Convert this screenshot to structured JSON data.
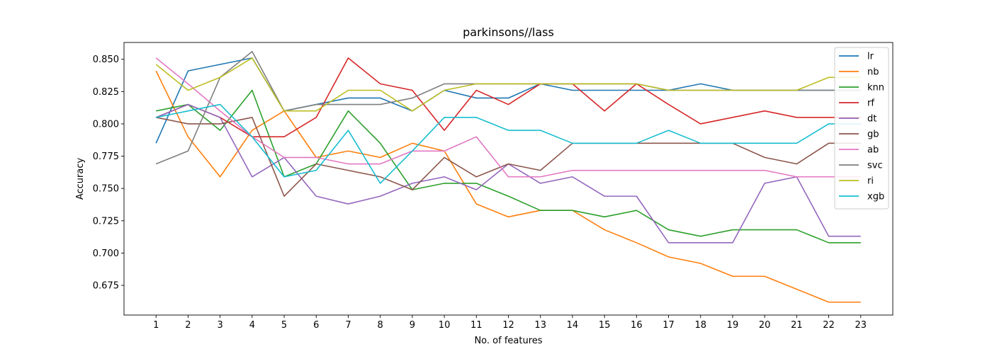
{
  "chart_data": {
    "type": "line",
    "title": "parkinsons//lass",
    "xlabel": "No. of features",
    "ylabel": "Accuracy",
    "x": [
      1,
      2,
      3,
      4,
      5,
      6,
      7,
      8,
      9,
      10,
      11,
      12,
      13,
      14,
      15,
      16,
      17,
      18,
      19,
      20,
      21,
      22,
      23
    ],
    "xticks": [
      "1",
      "2",
      "3",
      "4",
      "5",
      "6",
      "7",
      "8",
      "9",
      "10",
      "11",
      "12",
      "13",
      "14",
      "15",
      "16",
      "17",
      "18",
      "19",
      "20",
      "21",
      "22",
      "23"
    ],
    "yticks": [
      "0.675",
      "0.700",
      "0.725",
      "0.750",
      "0.775",
      "0.800",
      "0.825",
      "0.850"
    ],
    "ytick_values": [
      0.675,
      0.7,
      0.725,
      0.75,
      0.775,
      0.8,
      0.825,
      0.85
    ],
    "xlim": [
      0.0,
      24.0
    ],
    "ylim": [
      0.652,
      0.863
    ],
    "grid": false,
    "legend_position": "top-right",
    "series": [
      {
        "name": "lr",
        "color": "#1f77b4",
        "values": [
          0.785,
          0.841,
          0.846,
          0.851,
          0.81,
          0.815,
          0.82,
          0.82,
          0.81,
          0.826,
          0.82,
          0.82,
          0.831,
          0.826,
          0.826,
          0.826,
          0.826,
          0.831,
          0.826,
          0.826,
          0.826,
          0.826,
          0.826
        ]
      },
      {
        "name": "nb",
        "color": "#ff7f0e",
        "values": [
          0.841,
          0.79,
          0.759,
          0.795,
          0.81,
          0.774,
          0.779,
          0.774,
          0.785,
          0.779,
          0.738,
          0.728,
          0.733,
          0.733,
          0.718,
          0.708,
          0.697,
          0.692,
          0.682,
          0.682,
          0.672,
          0.662,
          0.662
        ]
      },
      {
        "name": "knn",
        "color": "#2ca02c",
        "values": [
          0.81,
          0.815,
          0.795,
          0.826,
          0.759,
          0.769,
          0.81,
          0.785,
          0.749,
          0.754,
          0.754,
          0.744,
          0.733,
          0.733,
          0.728,
          0.733,
          0.718,
          0.713,
          0.718,
          0.718,
          0.718,
          0.708,
          0.708
        ]
      },
      {
        "name": "rf",
        "color": "#d62728",
        "values": [
          0.805,
          0.815,
          0.805,
          0.79,
          0.79,
          0.805,
          0.851,
          0.831,
          0.826,
          0.795,
          0.826,
          0.815,
          0.831,
          0.831,
          0.81,
          0.831,
          0.815,
          0.8,
          0.805,
          0.81,
          0.805,
          0.805,
          0.805
        ]
      },
      {
        "name": "dt",
        "color": "#9467bd",
        "values": [
          0.805,
          0.815,
          0.805,
          0.759,
          0.774,
          0.744,
          0.738,
          0.744,
          0.754,
          0.759,
          0.749,
          0.769,
          0.754,
          0.759,
          0.744,
          0.744,
          0.708,
          0.708,
          0.708,
          0.754,
          0.759,
          0.713,
          0.713
        ]
      },
      {
        "name": "gb",
        "color": "#8c564b",
        "values": [
          0.805,
          0.8,
          0.8,
          0.805,
          0.744,
          0.769,
          0.764,
          0.759,
          0.749,
          0.774,
          0.759,
          0.769,
          0.764,
          0.785,
          0.785,
          0.785,
          0.785,
          0.785,
          0.785,
          0.774,
          0.769,
          0.785,
          0.785
        ]
      },
      {
        "name": "ab",
        "color": "#e377c2",
        "values": [
          0.851,
          0.831,
          0.81,
          0.79,
          0.774,
          0.774,
          0.769,
          0.769,
          0.779,
          0.779,
          0.79,
          0.759,
          0.759,
          0.764,
          0.764,
          0.764,
          0.764,
          0.764,
          0.764,
          0.764,
          0.759,
          0.759,
          0.759
        ]
      },
      {
        "name": "svc",
        "color": "#7f7f7f",
        "values": [
          0.769,
          0.779,
          0.836,
          0.856,
          0.81,
          0.815,
          0.815,
          0.815,
          0.82,
          0.831,
          0.831,
          0.831,
          0.831,
          0.831,
          0.831,
          0.831,
          0.826,
          0.826,
          0.826,
          0.826,
          0.826,
          0.826,
          0.826
        ]
      },
      {
        "name": "ri",
        "color": "#bcbd22",
        "values": [
          0.846,
          0.826,
          0.836,
          0.851,
          0.81,
          0.81,
          0.826,
          0.826,
          0.81,
          0.826,
          0.831,
          0.831,
          0.831,
          0.831,
          0.831,
          0.831,
          0.826,
          0.826,
          0.826,
          0.826,
          0.826,
          0.836,
          0.836
        ]
      },
      {
        "name": "xgb",
        "color": "#17becf",
        "values": [
          0.805,
          0.81,
          0.815,
          0.79,
          0.759,
          0.764,
          0.795,
          0.754,
          0.779,
          0.805,
          0.805,
          0.795,
          0.795,
          0.785,
          0.785,
          0.785,
          0.795,
          0.785,
          0.785,
          0.785,
          0.785,
          0.8,
          0.8
        ]
      }
    ]
  }
}
